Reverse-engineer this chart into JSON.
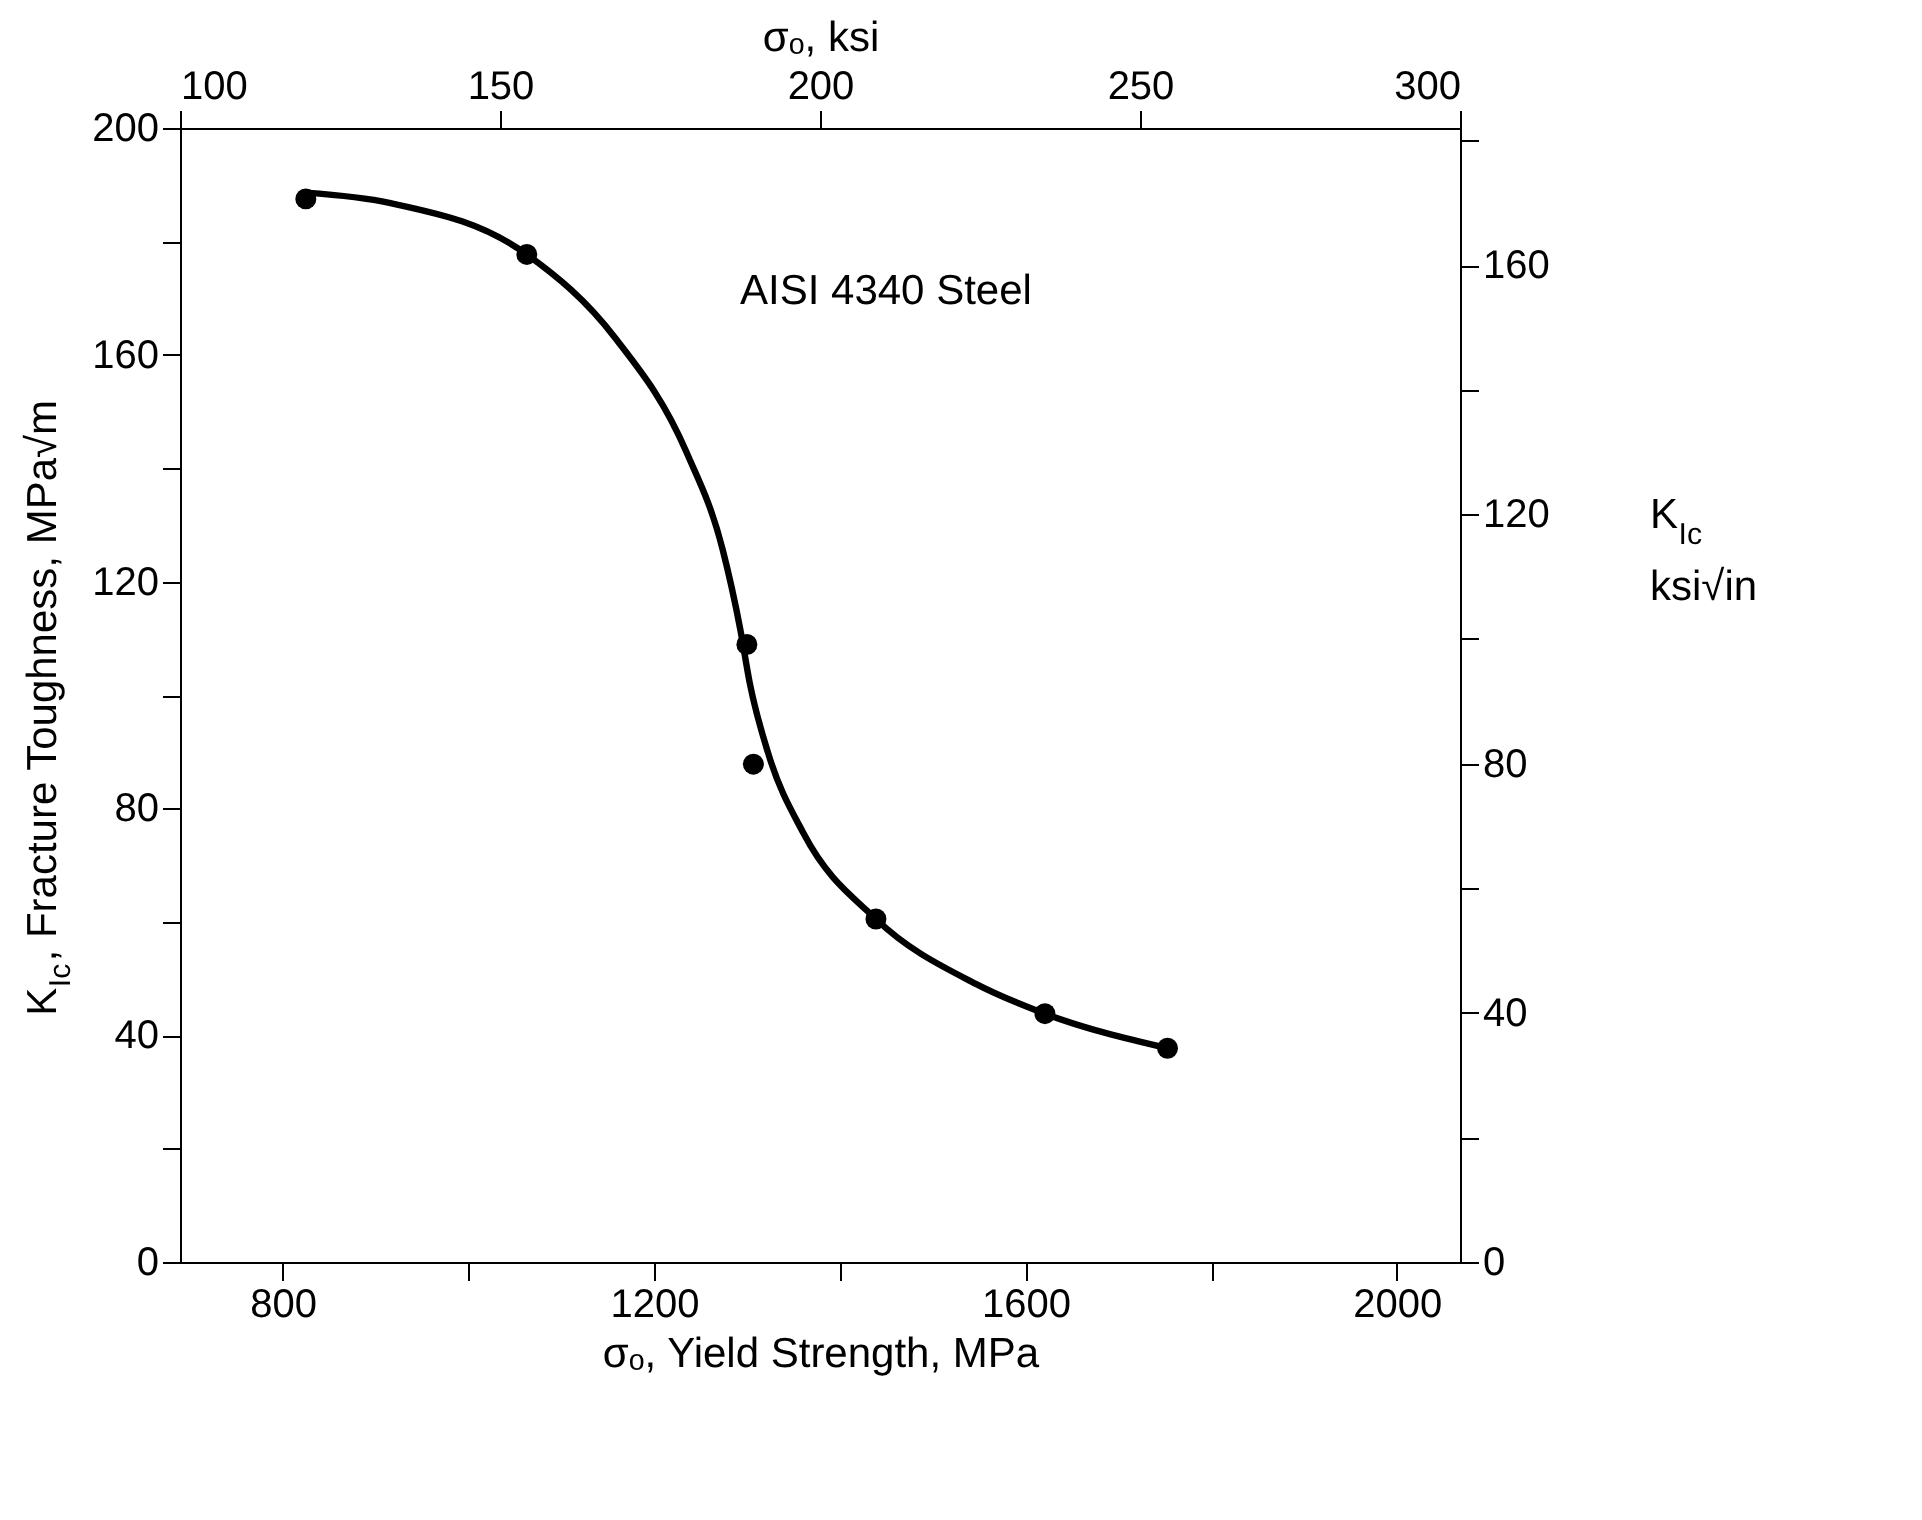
{
  "chart_data": {
    "type": "scatter",
    "xlabel": "σₒ, Yield Strength, MPa",
    "ylabel": "K$_{Ic}$, Fracture Toughness, MPa√m",
    "x2label": "σₒ, ksi",
    "y2label": "K$_{Ic}$\nksi√in",
    "annotations": [
      "AISI 4340 Steel"
    ],
    "xlim": [
      689.5,
      2068
    ],
    "xticks": [
      800,
      {
        "value": 1000,
        "label": null
      },
      1200,
      {
        "value": 1400,
        "label": null
      },
      1600,
      {
        "value": 1800,
        "label": null
      },
      2000
    ],
    "x2lim": [
      100,
      300
    ],
    "x2ticks": [
      100,
      150,
      200,
      250,
      300
    ],
    "ylim": [
      0,
      200
    ],
    "yticks": [
      0,
      {
        "value": 20,
        "label": null
      },
      40,
      {
        "value": 60,
        "label": null
      },
      80,
      {
        "value": 100,
        "label": null
      },
      120,
      {
        "value": 140,
        "label": null
      },
      160,
      {
        "value": 180,
        "label": null
      },
      200
    ],
    "y2lim": [
      0,
      182
    ],
    "y2ticks": [
      0,
      {
        "value": 20,
        "label": null
      },
      40,
      {
        "value": 60,
        "label": null
      },
      80,
      {
        "value": 100,
        "label": null
      },
      120,
      {
        "value": 140,
        "label": null
      },
      160,
      {
        "value": 180,
        "label": null
      }
    ],
    "grid": false,
    "legend": false,
    "series": [
      {
        "type": "scatter",
        "marker": "circle",
        "color": "#000000",
        "x": [
          825,
          1063,
          1300,
          1307,
          1439,
          1621,
          1753
        ],
        "values": [
          187.5,
          177.7,
          108.9,
          87.8,
          60.5,
          43.8,
          37.7
        ]
      },
      {
        "type": "line",
        "marker": "none",
        "line_style": "solid",
        "color": "#000000",
        "x": [
          825,
          915,
          1063,
          1158,
          1235,
          1274,
          1293,
          1303,
          1323,
          1361,
          1439,
          1546,
          1621,
          1753
        ],
        "values": [
          188.6,
          186.8,
          177.7,
          163,
          142.8,
          125.6,
          111.5,
          102.2,
          89.7,
          75.6,
          60.5,
          49.1,
          43.8,
          37.7
        ]
      }
    ]
  }
}
